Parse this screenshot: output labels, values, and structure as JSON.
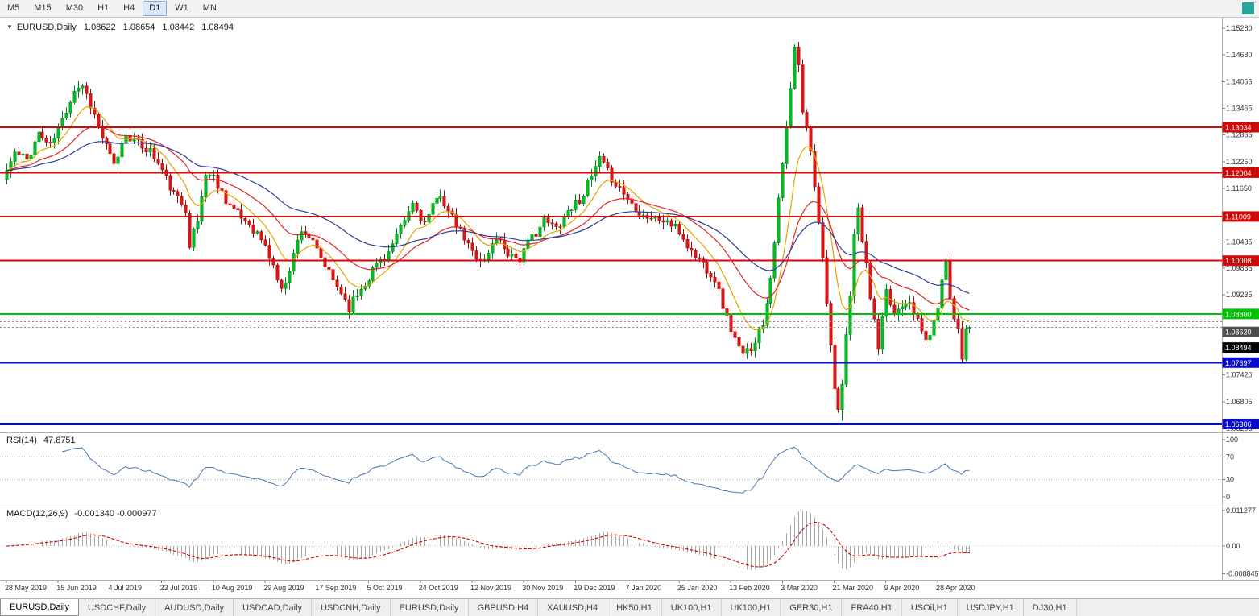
{
  "toolbar": {
    "timeframes": [
      "M5",
      "M15",
      "M30",
      "H1",
      "H4",
      "D1",
      "W1",
      "MN"
    ],
    "active": "D1"
  },
  "window": {
    "corner_color": "#26A69A"
  },
  "chart": {
    "header": {
      "collapse_icon": "▼",
      "symbol": "EURUSD,Daily",
      "open": "1.08622",
      "high": "1.08654",
      "low": "1.08442",
      "close": "1.08494"
    }
  },
  "rsi": {
    "label": "RSI(14)",
    "value": "47.8751",
    "period": 14,
    "color": "#4878B0",
    "levels": [
      {
        "label": "100",
        "v": 100
      },
      {
        "label": "70",
        "v": 70
      },
      {
        "label": "30",
        "v": 30
      },
      {
        "label": "0",
        "v": 0
      }
    ]
  },
  "macd": {
    "label": "MACD(12,26,9)",
    "values": "-0.001340 -0.000977",
    "fast": 12,
    "slow": 26,
    "signal": 9,
    "hist_color": "#A8A8A8",
    "signal_color": "#D40000",
    "axis": [
      {
        "label": "0.011277",
        "v": 0.011277
      },
      {
        "label": "0.00",
        "v": 0
      },
      {
        "label": "-0.008845",
        "v": -0.008845
      }
    ]
  },
  "chart_data": {
    "type": "candlestick",
    "symbol": "EURUSD",
    "timeframe": "Daily",
    "ohlc": {
      "open": 1.08622,
      "high": 1.08654,
      "low": 1.08442,
      "close": 1.08494
    },
    "candle_up_color": "#00BD22",
    "candle_up_stroke": "#00821a",
    "candle_down_color": "#E01414",
    "candle_down_stroke": "#9d0e0e",
    "y_axis_ticks": [
      "1.15280",
      "1.14680",
      "1.14065",
      "1.13465",
      "1.12865",
      "1.12250",
      "1.11650",
      "1.10435",
      "1.09835",
      "1.09235",
      "1.08020",
      "1.07420",
      "1.06805",
      "1.06205"
    ],
    "levels": [
      {
        "label": "1.13034",
        "price": 1.13034,
        "color": "#CE0A0A",
        "width": 2,
        "style": "solid"
      },
      {
        "label": "1.12004",
        "price": 1.12004,
        "color": "#CE0A0A",
        "width": 2,
        "style": "solid"
      },
      {
        "label": "1.11009",
        "price": 1.11009,
        "color": "#CE0A0A",
        "width": 2,
        "style": "solid"
      },
      {
        "label": "1.10008",
        "price": 1.10008,
        "color": "#CE0A0A",
        "width": 2,
        "style": "solid"
      },
      {
        "label": "1.08800",
        "price": 1.088,
        "color": "#00C400",
        "width": 2,
        "style": "solid"
      },
      {
        "label": "1.08620",
        "price": 1.0862,
        "color": "#4D4D4D",
        "width": 1,
        "style": "dotted"
      },
      {
        "label": "1.08494",
        "price": 1.08494,
        "color": "#000000",
        "width": 1,
        "style": "dotted"
      },
      {
        "label": "1.07697",
        "price": 1.07697,
        "color": "#0A0ACE",
        "width": 2,
        "style": "solid"
      },
      {
        "label": "1.06306",
        "price": 1.06306,
        "color": "#0A0ACE",
        "width": 3,
        "style": "solid"
      }
    ],
    "x_axis_dates": [
      "28 May 2019",
      "15 Jun 2019",
      "4 Jul 2019",
      "23 Jul 2019",
      "10 Aug 2019",
      "29 Aug 2019",
      "17 Sep 2019",
      "5 Oct 2019",
      "24 Oct 2019",
      "12 Nov 2019",
      "30 Nov 2019",
      "19 Dec 2019",
      "7 Jan 2020",
      "25 Jan 2020",
      "13 Feb 2020",
      "3 Mar 2020",
      "21 Mar 2020",
      "9 Apr 2020",
      "28 Apr 2020"
    ],
    "days_per_date_tick": 13,
    "num_candles": 243,
    "final_close": 1.08494,
    "moving_averages": [
      {
        "period": 10,
        "color": "#E1A500"
      },
      {
        "period": 25,
        "color": "#E02424"
      },
      {
        "period": 50,
        "color": "#2C3C96"
      }
    ],
    "price_path_anchors": [
      [
        0,
        1.1185
      ],
      [
        3,
        1.1245
      ],
      [
        6,
        1.123
      ],
      [
        9,
        1.129
      ],
      [
        12,
        1.126
      ],
      [
        15,
        1.132
      ],
      [
        18,
        1.139
      ],
      [
        20,
        1.14
      ],
      [
        22,
        1.1355
      ],
      [
        25,
        1.128
      ],
      [
        28,
        1.1215
      ],
      [
        31,
        1.129
      ],
      [
        34,
        1.1265
      ],
      [
        37,
        1.125
      ],
      [
        40,
        1.1205
      ],
      [
        43,
        1.115
      ],
      [
        46,
        1.112
      ],
      [
        47,
        1.104
      ],
      [
        49,
        1.109
      ],
      [
        51,
        1.12
      ],
      [
        53,
        1.119
      ],
      [
        56,
        1.114
      ],
      [
        59,
        1.1105
      ],
      [
        62,
        1.1085
      ],
      [
        65,
        1.105
      ],
      [
        68,
        1.099
      ],
      [
        70,
        1.093
      ],
      [
        72,
        1.0985
      ],
      [
        75,
        1.1075
      ],
      [
        77,
        1.1055
      ],
      [
        80,
        1.1005
      ],
      [
        83,
        1.0955
      ],
      [
        85,
        1.093
      ],
      [
        87,
        1.0895
      ],
      [
        89,
        1.0925
      ],
      [
        92,
        1.0965
      ],
      [
        94,
        1.0995
      ],
      [
        97,
        1.102
      ],
      [
        100,
        1.107
      ],
      [
        103,
        1.113
      ],
      [
        106,
        1.1085
      ],
      [
        108,
        1.112
      ],
      [
        110,
        1.1155
      ],
      [
        112,
        1.111
      ],
      [
        115,
        1.1065
      ],
      [
        118,
        1.102
      ],
      [
        121,
        1.1
      ],
      [
        124,
        1.1055
      ],
      [
        127,
        1.102
      ],
      [
        130,
        1.1005
      ],
      [
        133,
        1.1055
      ],
      [
        136,
        1.109
      ],
      [
        139,
        1.1075
      ],
      [
        142,
        1.1115
      ],
      [
        145,
        1.114
      ],
      [
        148,
        1.119
      ],
      [
        150,
        1.123
      ],
      [
        152,
        1.12
      ],
      [
        155,
        1.1165
      ],
      [
        158,
        1.113
      ],
      [
        161,
        1.1105
      ],
      [
        164,
        1.1095
      ],
      [
        167,
        1.109
      ],
      [
        170,
        1.1065
      ],
      [
        173,
        1.102
      ],
      [
        176,
        1.0995
      ],
      [
        179,
        1.096
      ],
      [
        182,
        1.087
      ],
      [
        185,
        1.08
      ],
      [
        186,
        1.0785
      ],
      [
        188,
        1.0805
      ],
      [
        191,
        1.086
      ],
      [
        193,
        1.0965
      ],
      [
        195,
        1.1135
      ],
      [
        197,
        1.13
      ],
      [
        199,
        1.148
      ],
      [
        200,
        1.144
      ],
      [
        201,
        1.134
      ],
      [
        203,
        1.1255
      ],
      [
        205,
        1.1095
      ],
      [
        207,
        1.0915
      ],
      [
        209,
        1.07
      ],
      [
        210,
        1.0655
      ],
      [
        211,
        1.072
      ],
      [
        213,
        1.093
      ],
      [
        214,
        1.106
      ],
      [
        215,
        1.1115
      ],
      [
        217,
        1.0985
      ],
      [
        219,
        1.086
      ],
      [
        220,
        1.08
      ],
      [
        221,
        1.0865
      ],
      [
        222,
        1.0925
      ],
      [
        224,
        1.088
      ],
      [
        226,
        1.0905
      ],
      [
        228,
        1.0915
      ],
      [
        230,
        1.086
      ],
      [
        232,
        1.082
      ],
      [
        234,
        1.0855
      ],
      [
        236,
        1.095
      ],
      [
        237,
        1.1005
      ],
      [
        238,
        1.0925
      ],
      [
        239,
        1.087
      ],
      [
        240,
        1.085
      ],
      [
        241,
        1.0785
      ],
      [
        242,
        1.085
      ]
    ],
    "pins": [
      {
        "day": 186,
        "low": 1.0778
      },
      {
        "day": 199,
        "high": 1.1497
      },
      {
        "day": 210,
        "low": 1.0637
      },
      {
        "day": 237,
        "high": 1.1019
      }
    ]
  },
  "tabs": {
    "active_index": 0,
    "items": [
      "EURUSD,Daily",
      "USDCHF,Daily",
      "AUDUSD,Daily",
      "USDCAD,Daily",
      "USDCNH,Daily",
      "EURUSD,Daily",
      "GBPUSD,H4",
      "XAUUSD,H4",
      "HK50,H1",
      "UK100,H1",
      "UK100,H1",
      "GER30,H1",
      "FRA40,H1",
      "USOil,H1",
      "USDJPY,H1",
      "DJ30,H1"
    ]
  }
}
